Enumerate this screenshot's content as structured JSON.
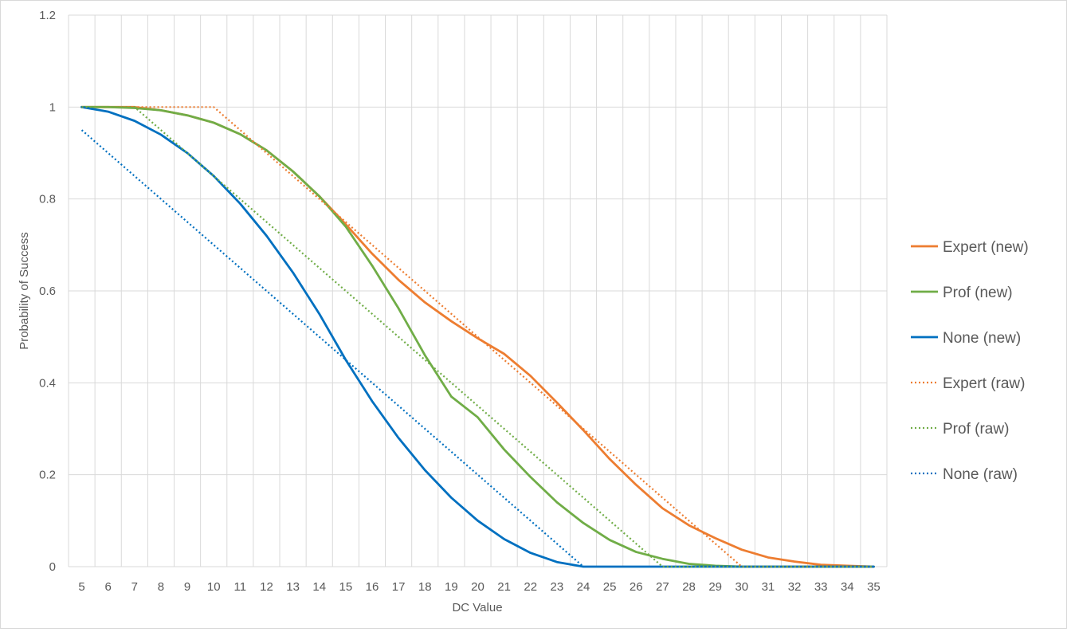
{
  "chart_data": {
    "type": "line",
    "title": "",
    "xlabel": "DC Value",
    "ylabel": "Probability of Success",
    "ylim": [
      0,
      1.2
    ],
    "yticks": [
      "0",
      "0.2",
      "0.4",
      "0.6",
      "0.8",
      "1",
      "1.2"
    ],
    "x": [
      5,
      6,
      7,
      8,
      9,
      10,
      11,
      12,
      13,
      14,
      15,
      16,
      17,
      18,
      19,
      20,
      21,
      22,
      23,
      24,
      25,
      26,
      27,
      28,
      29,
      30,
      31,
      32,
      33,
      34,
      35
    ],
    "grid": true,
    "legend_position": "right",
    "series": [
      {
        "name": "Expert (new)",
        "color": "#ed7d31",
        "style": "solid",
        "values": [
          1,
          1,
          1,
          0.993,
          0.982,
          0.966,
          0.941,
          0.906,
          0.86,
          0.806,
          0.745,
          0.681,
          0.624,
          0.575,
          0.534,
          0.497,
          0.463,
          0.415,
          0.357,
          0.297,
          0.234,
          0.178,
          0.127,
          0.09,
          0.062,
          0.037,
          0.02,
          0.011,
          0.004,
          0.002,
          0
        ]
      },
      {
        "name": "Prof (new)",
        "color": "#70ad47",
        "style": "solid",
        "values": [
          1,
          1,
          0.998,
          0.993,
          0.982,
          0.966,
          0.941,
          0.906,
          0.86,
          0.806,
          0.74,
          0.655,
          0.562,
          0.46,
          0.37,
          0.325,
          0.255,
          0.195,
          0.14,
          0.095,
          0.058,
          0.032,
          0.017,
          0.006,
          0.002,
          0,
          0,
          0,
          0,
          0,
          0
        ]
      },
      {
        "name": "None (new)",
        "color": "#0070c0",
        "style": "solid",
        "values": [
          1,
          0.99,
          0.97,
          0.94,
          0.9,
          0.85,
          0.79,
          0.72,
          0.64,
          0.55,
          0.45,
          0.36,
          0.28,
          0.21,
          0.15,
          0.1,
          0.06,
          0.03,
          0.01,
          0,
          0,
          0,
          0,
          0,
          0,
          0,
          0,
          0,
          0,
          0,
          0
        ]
      },
      {
        "name": "Expert (raw)",
        "color": "#ed7d31",
        "style": "dotted",
        "values": [
          1,
          1,
          1,
          1,
          1,
          1,
          0.95,
          0.9,
          0.85,
          0.8,
          0.75,
          0.7,
          0.65,
          0.6,
          0.55,
          0.5,
          0.45,
          0.4,
          0.35,
          0.3,
          0.25,
          0.2,
          0.15,
          0.1,
          0.05,
          0,
          0,
          0,
          0,
          0,
          0
        ]
      },
      {
        "name": "Prof (raw)",
        "color": "#70ad47",
        "style": "dotted",
        "values": [
          1,
          1,
          1,
          0.95,
          0.9,
          0.85,
          0.8,
          0.75,
          0.7,
          0.65,
          0.6,
          0.55,
          0.5,
          0.45,
          0.4,
          0.35,
          0.3,
          0.25,
          0.2,
          0.15,
          0.1,
          0.05,
          0,
          0,
          0,
          0,
          0,
          0,
          0,
          0,
          0
        ]
      },
      {
        "name": "None (raw)",
        "color": "#0070c0",
        "style": "dotted",
        "values": [
          0.95,
          0.9,
          0.85,
          0.8,
          0.75,
          0.7,
          0.65,
          0.6,
          0.55,
          0.5,
          0.45,
          0.4,
          0.35,
          0.3,
          0.25,
          0.2,
          0.15,
          0.1,
          0.05,
          0,
          null,
          null,
          null,
          null,
          null,
          null,
          null,
          null,
          null,
          null,
          null
        ]
      }
    ]
  }
}
